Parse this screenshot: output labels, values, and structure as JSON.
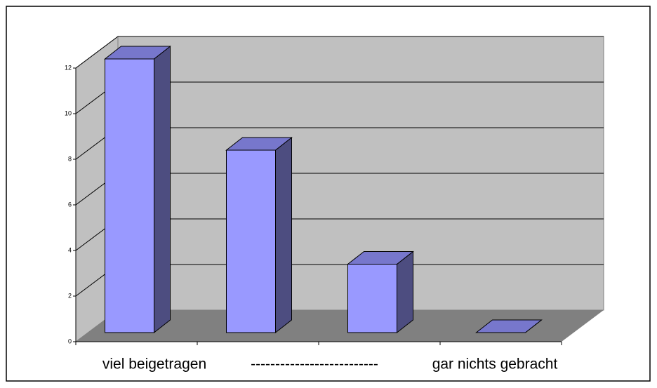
{
  "chart_data": {
    "type": "bar3d",
    "categories": [
      null,
      null,
      null,
      null
    ],
    "values": [
      12,
      8,
      3,
      0
    ],
    "x_labels": [
      "viel beigetragen",
      "--------------------------",
      "gar nichts gebracht"
    ],
    "color": "#9999ff",
    "side_color": "#4d4d80",
    "top_color": "#7777cc",
    "ylim": [
      0,
      12
    ],
    "yticks": [
      0,
      2,
      4,
      6,
      8,
      10,
      12
    ],
    "grid": true
  }
}
